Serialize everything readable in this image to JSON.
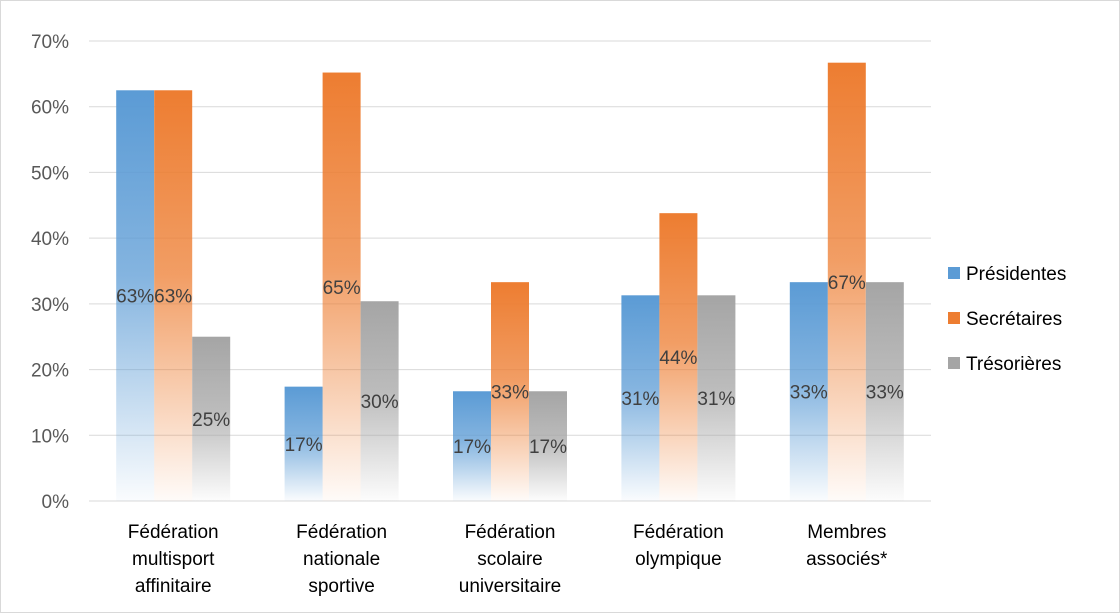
{
  "chart_data": {
    "type": "bar",
    "categories": [
      [
        "Fédération",
        "multisport",
        "affinitaire"
      ],
      [
        "Fédération",
        "nationale",
        "sportive"
      ],
      [
        "Fédération",
        "scolaire",
        "universitaire"
      ],
      [
        "Fédération",
        "olympique"
      ],
      [
        "Membres",
        "associés*"
      ]
    ],
    "series": [
      {
        "name": "Présidentes",
        "color": "#5B9BD5",
        "values": [
          62.5,
          17.4,
          16.7,
          31.3,
          33.3
        ],
        "labels": [
          "63%",
          "17%",
          "17%",
          "31%",
          "33%"
        ]
      },
      {
        "name": "Secrétaires",
        "color": "#ED7D31",
        "values": [
          62.5,
          65.2,
          33.3,
          43.8,
          66.7
        ],
        "labels": [
          "63%",
          "65%",
          "33%",
          "44%",
          "67%"
        ]
      },
      {
        "name": "Trésorières",
        "color": "#A5A5A5",
        "values": [
          25.0,
          30.4,
          16.7,
          31.3,
          33.3
        ],
        "labels": [
          "25%",
          "30%",
          "17%",
          "31%",
          "33%"
        ]
      }
    ],
    "y_ticks": [
      "0%",
      "10%",
      "20%",
      "30%",
      "40%",
      "50%",
      "60%",
      "70%"
    ],
    "ylim": [
      0,
      70
    ],
    "grid": true,
    "legend_position": "right",
    "title": "",
    "xlabel": "",
    "ylabel": ""
  }
}
